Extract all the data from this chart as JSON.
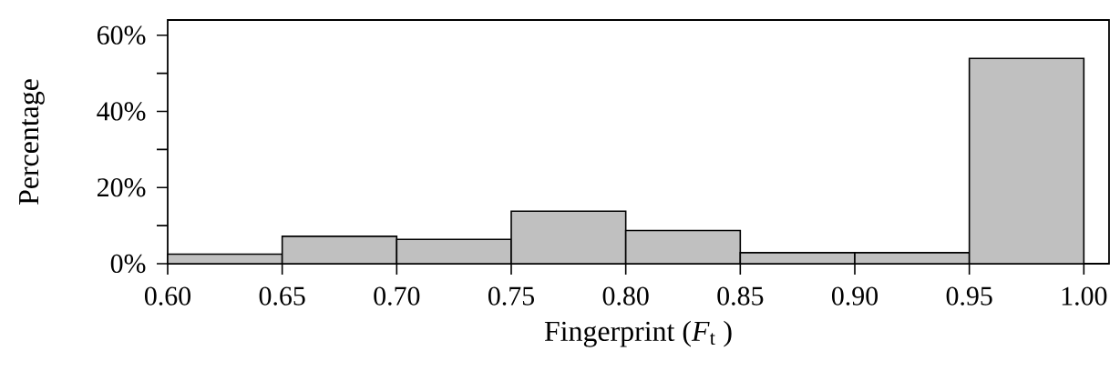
{
  "chart_data": {
    "type": "histogram",
    "xlabel": "Fingerprint (*F*$_{t}$ )",
    "ylabel": "Percentage",
    "bins": [
      0.6,
      0.65,
      0.7,
      0.75,
      0.8,
      0.85,
      0.9,
      0.95,
      1.0
    ],
    "values": [
      2.5,
      7.2,
      6.4,
      13.8,
      8.7,
      2.9,
      2.9,
      53.9
    ],
    "color": "#c0c0c0",
    "xlim": [
      0.6,
      1.011
    ],
    "ylim": [
      0,
      64
    ],
    "xticks": [
      {
        "value": 0.6,
        "label": "0.60"
      },
      {
        "value": 0.65,
        "label": "0.65"
      },
      {
        "value": 0.7,
        "label": "0.70"
      },
      {
        "value": 0.75,
        "label": "0.75"
      },
      {
        "value": 0.8,
        "label": "0.80"
      },
      {
        "value": 0.85,
        "label": "0.85"
      },
      {
        "value": 0.9,
        "label": "0.90"
      },
      {
        "value": 0.95,
        "label": "0.95"
      },
      {
        "value": 1.0,
        "label": "1.00"
      }
    ],
    "yticks": [
      {
        "value": 0,
        "label": "0%"
      },
      {
        "value": 10,
        "label": null
      },
      {
        "value": 20,
        "label": "20%"
      },
      {
        "value": 30,
        "label": null
      },
      {
        "value": 40,
        "label": "40%"
      },
      {
        "value": 50,
        "label": null
      },
      {
        "value": 60,
        "label": "60%"
      }
    ],
    "grid": false
  }
}
